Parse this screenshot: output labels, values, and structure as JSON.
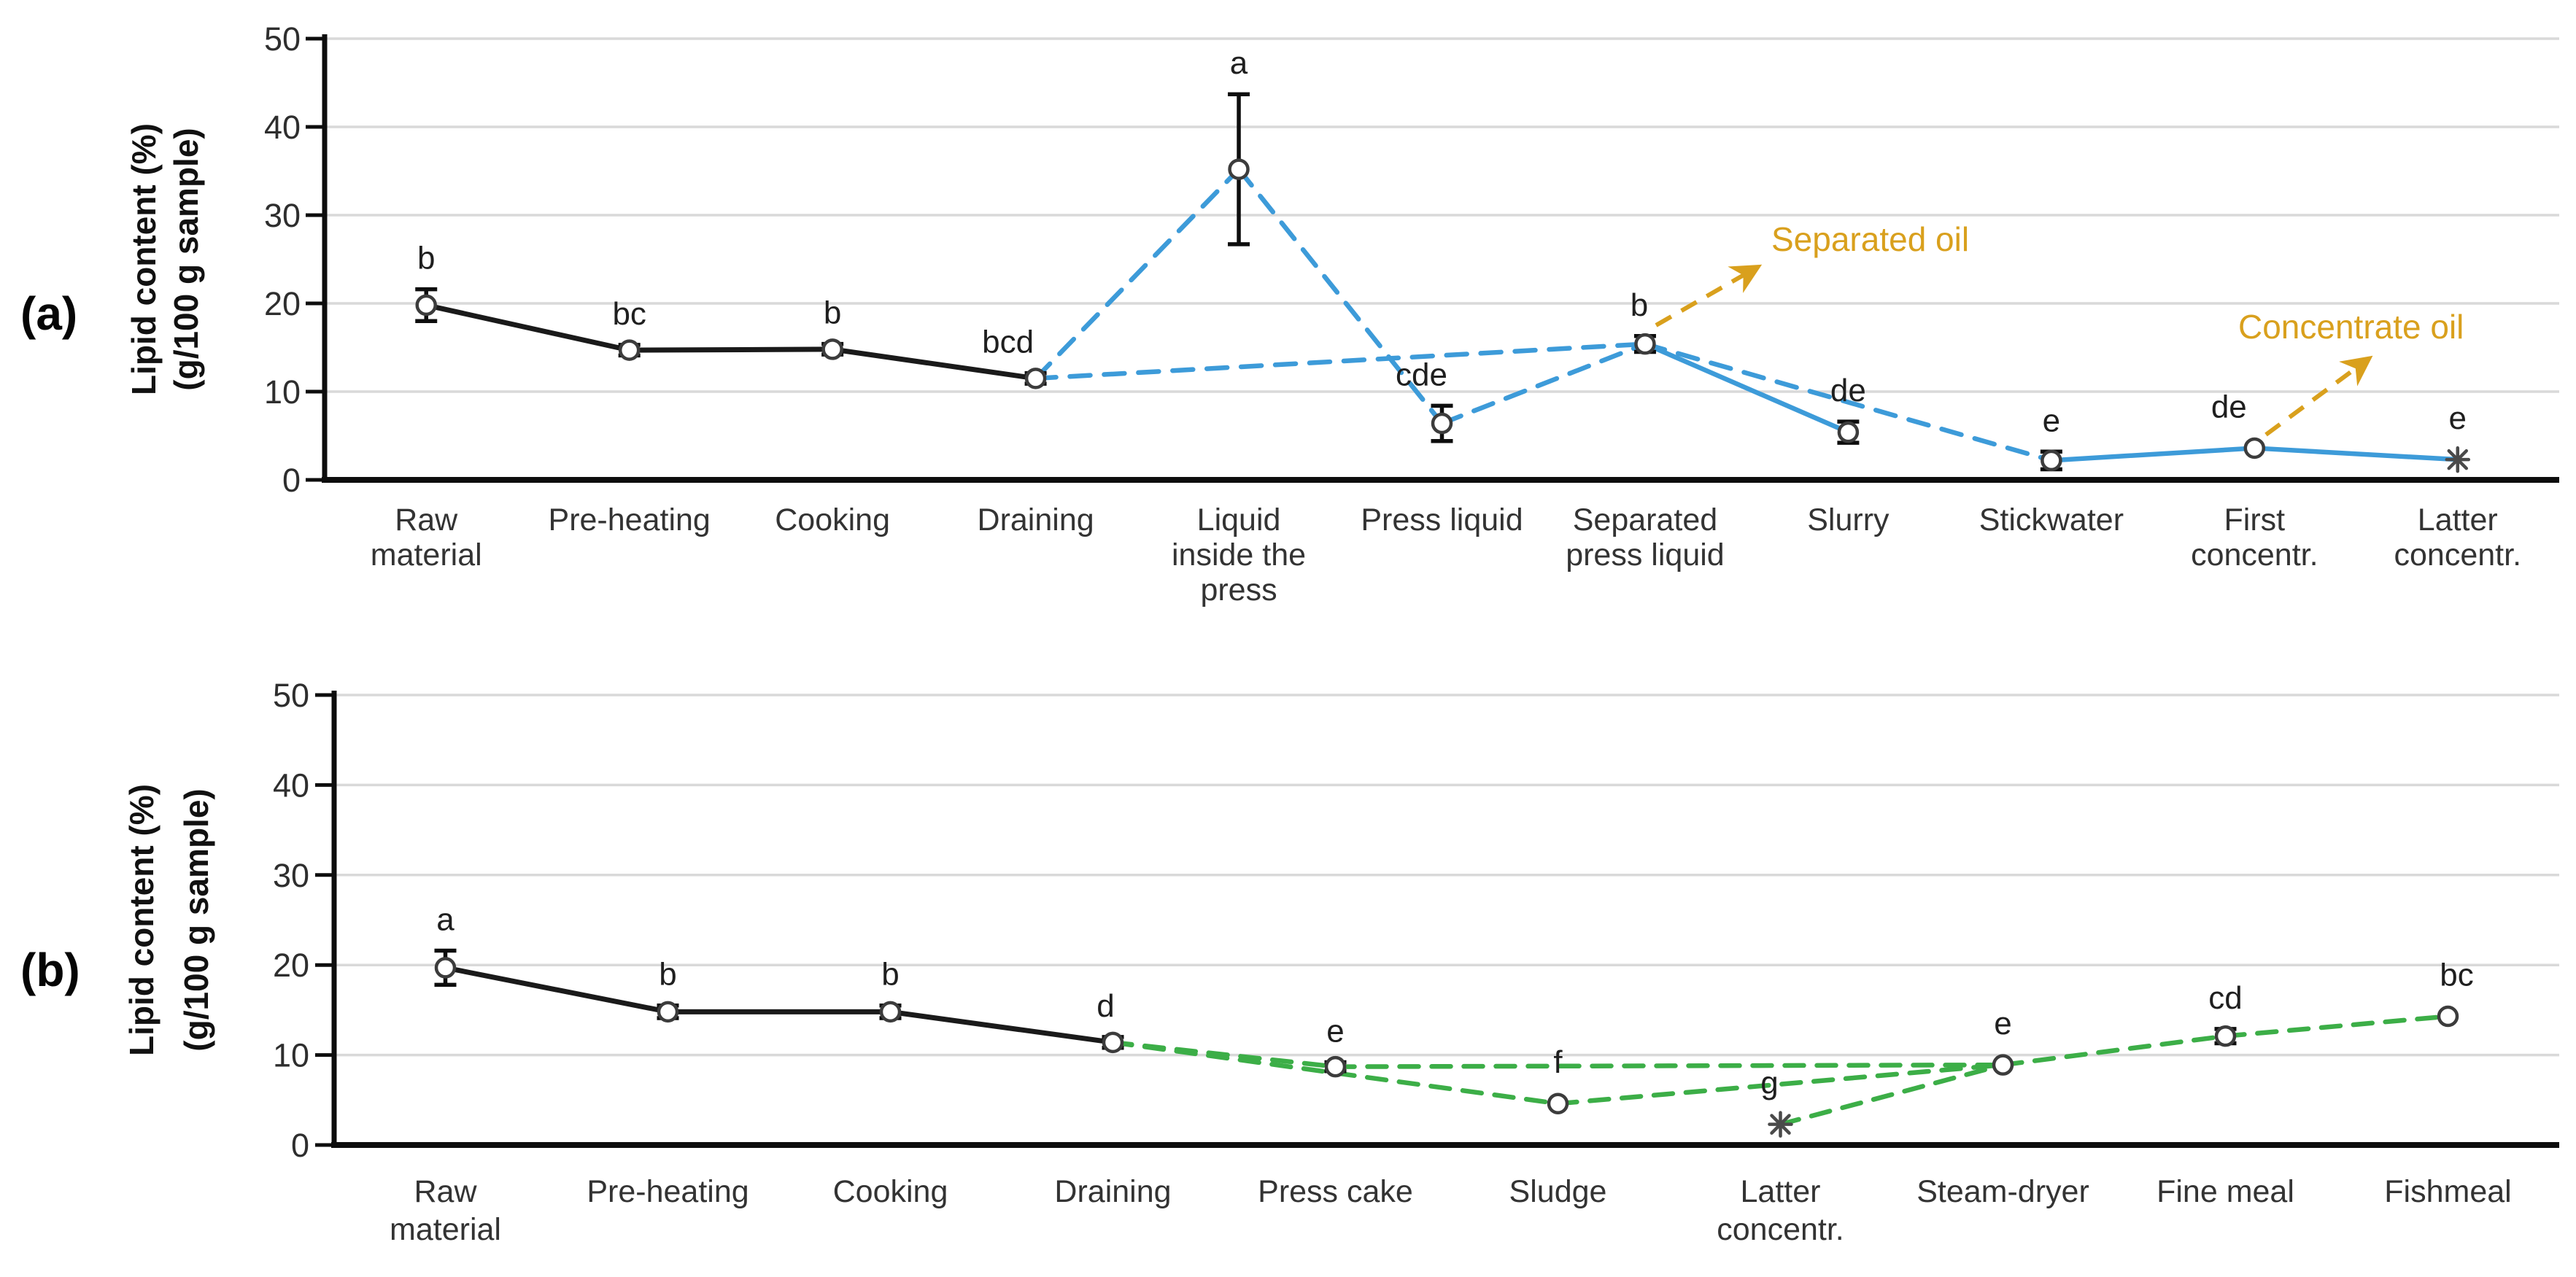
{
  "colors": {
    "black": "#1a1a1a",
    "blue": "#3d9bd9",
    "green": "#3cae47",
    "orange": "#d9a01d",
    "grid": "#d9d9d9",
    "axis": "#0d0d0d",
    "marker_stroke": "#3c3c3c",
    "asterisk": "#4a4a4a"
  },
  "chart_data": [
    {
      "type": "line",
      "panel_label": "(a)",
      "ylabel_lines": [
        "Lipid content (%)",
        "(g/100 g sample)"
      ],
      "ylim": [
        0,
        50
      ],
      "yticks": [
        0,
        10,
        20,
        30,
        40,
        50
      ],
      "grid": true,
      "categories": [
        [
          "Raw",
          "material"
        ],
        [
          "Pre-heating"
        ],
        [
          "Cooking"
        ],
        [
          "Draining"
        ],
        [
          "Liquid",
          "inside the",
          "press"
        ],
        [
          "Press liquid"
        ],
        [
          "Separated",
          "press liquid"
        ],
        [
          "Slurry"
        ],
        [
          "Stickwater"
        ],
        [
          "First",
          "concentr."
        ],
        [
          "Latter",
          "concentr."
        ]
      ],
      "points": [
        {
          "category": "Raw material",
          "value": 19.8,
          "err": 1.8,
          "letter": "b",
          "marker": "circle",
          "letter_dx": 0
        },
        {
          "category": "Pre-heating",
          "value": 14.7,
          "err": 0.6,
          "letter": "bc",
          "marker": "circle",
          "letter_dx": 0
        },
        {
          "category": "Cooking",
          "value": 14.8,
          "err": 0.6,
          "letter": "b",
          "marker": "circle",
          "letter_dx": 0
        },
        {
          "category": "Draining",
          "value": 11.5,
          "err": 0.6,
          "letter": "bcd",
          "marker": "circle",
          "letter_dx": -38
        },
        {
          "category": "Liquid inside the press",
          "value": 35.2,
          "err": 8.5,
          "letter": "a",
          "marker": "circle",
          "letter_dx": 0
        },
        {
          "category": "Press liquid",
          "value": 6.4,
          "err": 2.0,
          "letter": "cde",
          "marker": "circle",
          "letter_dx": -28
        },
        {
          "category": "Separated press liquid",
          "value": 15.4,
          "err": 0.9,
          "letter": "b",
          "marker": "circle",
          "letter_dx": -8
        },
        {
          "category": "Slurry",
          "value": 5.4,
          "err": 1.2,
          "letter": "de",
          "marker": "circle",
          "letter_dx": 0
        },
        {
          "category": "Stickwater",
          "value": 2.2,
          "err": 1.0,
          "letter": "e",
          "marker": "circle",
          "letter_dx": 0
        },
        {
          "category": "First concentr.",
          "value": 3.6,
          "err": 0,
          "letter": "de",
          "marker": "circle",
          "letter_dx": -35
        },
        {
          "category": "Latter concentr.",
          "value": 2.3,
          "err": 0,
          "letter": "e",
          "marker": "asterisk",
          "letter_dx": 0
        }
      ],
      "connections": [
        {
          "from": 0,
          "to": 1,
          "line": "solid",
          "color": "black"
        },
        {
          "from": 1,
          "to": 2,
          "line": "solid",
          "color": "black"
        },
        {
          "from": 2,
          "to": 3,
          "line": "solid",
          "color": "black"
        },
        {
          "from": 3,
          "to": 4,
          "line": "dashed",
          "color": "blue"
        },
        {
          "from": 4,
          "to": 5,
          "line": "dashed",
          "color": "blue"
        },
        {
          "from": 3,
          "to": 6,
          "line": "dashed",
          "color": "blue"
        },
        {
          "from": 5,
          "to": 6,
          "line": "dashed",
          "color": "blue"
        },
        {
          "from": 6,
          "to": 8,
          "line": "dashed",
          "color": "blue"
        },
        {
          "from": 6,
          "to": 7,
          "line": "solid",
          "color": "blue"
        },
        {
          "from": 8,
          "to": 9,
          "line": "solid",
          "color": "blue"
        },
        {
          "from": 9,
          "to": 10,
          "line": "solid",
          "color": "blue"
        }
      ],
      "annotations": [
        {
          "label": "Separated oil",
          "x1": 2270,
          "y1": 446,
          "x2": 2406,
          "y2": 368,
          "tx": 2428,
          "ty": 344
        },
        {
          "label": "Concentrate oil",
          "x1": 3106,
          "y1": 596,
          "x2": 3244,
          "y2": 494,
          "tx": 3068,
          "ty": 464
        }
      ]
    },
    {
      "type": "line",
      "panel_label": "(b)",
      "ylabel_lines": [
        "Lipid content (%)",
        "(g/100 g sample)"
      ],
      "ylim": [
        0,
        50
      ],
      "yticks": [
        0,
        10,
        20,
        30,
        40,
        50
      ],
      "grid": true,
      "categories": [
        [
          "Raw",
          "material"
        ],
        [
          "Pre-heating"
        ],
        [
          "Cooking"
        ],
        [
          "Draining"
        ],
        [
          "Press cake"
        ],
        [
          "Sludge"
        ],
        [
          "Latter",
          "concentr."
        ],
        [
          "Steam-dryer"
        ],
        [
          "Fine meal"
        ],
        [
          "Fishmeal"
        ]
      ],
      "points": [
        {
          "category": "Raw material",
          "value": 19.7,
          "err": 1.9,
          "letter": "a",
          "marker": "circle",
          "letter_dx": 0
        },
        {
          "category": "Pre-heating",
          "value": 14.8,
          "err": 0.7,
          "letter": "b",
          "marker": "circle",
          "letter_dx": 0
        },
        {
          "category": "Cooking",
          "value": 14.8,
          "err": 0.7,
          "letter": "b",
          "marker": "circle",
          "letter_dx": 0
        },
        {
          "category": "Draining",
          "value": 11.4,
          "err": 0.6,
          "letter": "d",
          "marker": "circle",
          "letter_dx": -10
        },
        {
          "category": "Press cake",
          "value": 8.7,
          "err": 0.5,
          "letter": "e",
          "marker": "circle",
          "letter_dx": 0
        },
        {
          "category": "Sludge",
          "value": 4.6,
          "err": 0,
          "letter": "f",
          "marker": "circle",
          "letter_dx": 0
        },
        {
          "category": "Latter concentr.",
          "value": 2.3,
          "err": 0,
          "letter": "g",
          "marker": "asterisk",
          "letter_dx": -15
        },
        {
          "category": "Steam-dryer",
          "value": 8.9,
          "err": 0,
          "letter": "e",
          "marker": "circle",
          "letter_dx": 0
        },
        {
          "category": "Fine meal",
          "value": 12.1,
          "err": 0.8,
          "letter": "cd",
          "marker": "circle",
          "letter_dx": 0
        },
        {
          "category": "Fishmeal",
          "value": 14.3,
          "err": 0,
          "letter": "bc",
          "marker": "circle",
          "letter_dx": 12
        }
      ],
      "connections": [
        {
          "from": 0,
          "to": 1,
          "line": "solid",
          "color": "black"
        },
        {
          "from": 1,
          "to": 2,
          "line": "solid",
          "color": "black"
        },
        {
          "from": 2,
          "to": 3,
          "line": "solid",
          "color": "black"
        },
        {
          "from": 3,
          "to": 4,
          "line": "dashed",
          "color": "green"
        },
        {
          "from": 3,
          "to": 5,
          "line": "dashed",
          "color": "green"
        },
        {
          "from": 4,
          "to": 7,
          "line": "dashed",
          "color": "green"
        },
        {
          "from": 5,
          "to": 7,
          "line": "dashed",
          "color": "green"
        },
        {
          "from": 6,
          "to": 7,
          "line": "dashed",
          "color": "green"
        },
        {
          "from": 7,
          "to": 8,
          "line": "dashed",
          "color": "green"
        },
        {
          "from": 8,
          "to": 9,
          "line": "dashed",
          "color": "green"
        }
      ],
      "annotations": []
    }
  ]
}
